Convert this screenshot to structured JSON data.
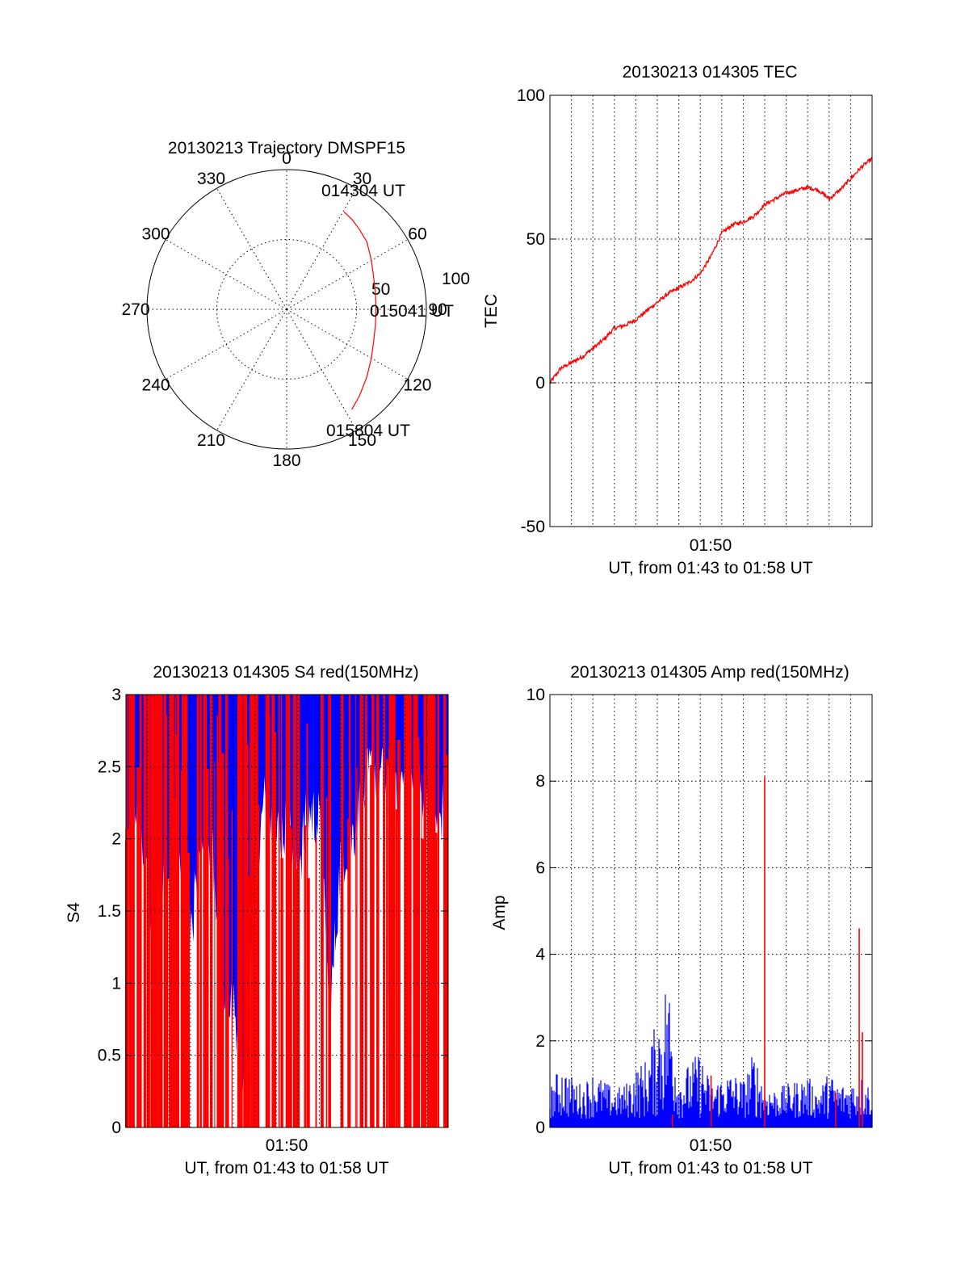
{
  "colors": {
    "red": "#ff0000",
    "blue": "#0000ff",
    "axis": "#000000"
  },
  "chart_data": [
    {
      "id": "trajectory",
      "type": "polar",
      "title": "20130213 Trajectory DMSPF15",
      "angle_labels": [
        "0",
        "30",
        "60",
        "90",
        "120",
        "150",
        "180",
        "210",
        "240",
        "270",
        "300",
        "330"
      ],
      "radial_labels": [
        "50",
        "100"
      ],
      "rlim": [
        0,
        100
      ],
      "grid": true,
      "series": [
        {
          "color": "#ff0000",
          "azimuth_deg": [
            30.5,
            36,
            42,
            50,
            60,
            70,
            80,
            90,
            100,
            110,
            120,
            130,
            140,
            147
          ],
          "radius": [
            81,
            79.5,
            77.5,
            75,
            70,
            66.3,
            64.5,
            64,
            64.5,
            66.3,
            70,
            75,
            81,
            85.5
          ]
        }
      ],
      "annotations": {
        "start": "014304 UT",
        "mid": "015041 UT",
        "end": "015804 UT"
      }
    },
    {
      "id": "tec",
      "type": "line",
      "title": "20130213 014305 TEC",
      "xlabel": "UT, from 01:43 to 01:58 UT",
      "ylabel": "TEC",
      "x_tick_labels": [
        "01:50"
      ],
      "y_tick_labels": [
        "-50",
        "0",
        "50",
        "100"
      ],
      "xlim_min": [
        43,
        58
      ],
      "ylim": [
        -50,
        100
      ],
      "grid": true,
      "series": [
        {
          "color": "#ff0000",
          "x_min": [
            43,
            43.5,
            44,
            44.5,
            45,
            45.5,
            46,
            46.5,
            47,
            47.5,
            48,
            48.5,
            49,
            49.5,
            50,
            50.5,
            51,
            51.5,
            52,
            52.5,
            53,
            53.5,
            54,
            54.5,
            55,
            55.5,
            56,
            56.5,
            57,
            57.5,
            58
          ],
          "values": [
            0,
            5,
            7,
            9,
            12,
            15,
            19,
            20,
            22,
            25,
            28,
            31,
            33,
            35,
            38,
            44,
            52,
            55,
            56,
            58,
            62,
            64,
            66,
            67,
            68,
            67,
            64,
            67,
            71,
            75,
            78
          ]
        }
      ]
    },
    {
      "id": "s4",
      "type": "bar",
      "title": "20130213 014305 S4 red(150MHz)",
      "xlabel": "UT, from 01:43 to 01:58 UT",
      "ylabel": "S4",
      "x_tick_labels": [
        "01:50"
      ],
      "y_tick_labels": [
        "0",
        "0.5",
        "1",
        "1.5",
        "2",
        "2.5",
        "3"
      ],
      "xlim_min": [
        43,
        58
      ],
      "ylim": [
        0,
        3
      ],
      "grid": true,
      "series": [
        {
          "name": "red",
          "color": "#ff0000",
          "description_values_range": [
            0,
            3
          ]
        },
        {
          "name": "blue",
          "color": "#0000ff",
          "x_min": [
            43.0,
            43.5,
            44.0,
            44.5,
            45.0,
            45.5,
            46.0,
            46.5,
            47.0,
            47.5,
            48.0,
            48.5,
            49.0,
            49.5,
            50.0,
            50.5,
            51.0,
            51.5,
            52.0,
            52.5,
            53.0,
            53.5,
            54.0,
            54.5,
            55.0,
            55.5,
            56.0,
            56.5,
            57.0,
            57.5,
            58.0
          ],
          "lower_envelope": [
            1.7,
            2.2,
            1.6,
            1.5,
            1.8,
            2.0,
            1.4,
            1.8,
            2.0,
            1.0,
            0.8,
            0.45,
            1.7,
            2.3,
            2.0,
            2.1,
            1.8,
            2.2,
            2.1,
            0.75,
            1.9,
            2.0,
            2.3,
            2.5,
            2.4,
            2.2,
            2.5,
            2.3,
            2.4,
            2.1,
            2.3
          ]
        }
      ]
    },
    {
      "id": "amp",
      "type": "bar",
      "title": "20130213 014305 Amp red(150MHz)",
      "xlabel": "UT, from 01:43 to 01:58 UT",
      "ylabel": "Amp",
      "x_tick_labels": [
        "01:50"
      ],
      "y_tick_labels": [
        "0",
        "2",
        "4",
        "6",
        "8",
        "10"
      ],
      "xlim_min": [
        43,
        58
      ],
      "ylim": [
        0,
        10
      ],
      "grid": true,
      "series": [
        {
          "name": "blue",
          "color": "#0000ff",
          "x_min": [
            43.0,
            43.5,
            44.0,
            44.5,
            45.0,
            45.5,
            46.0,
            46.5,
            47.0,
            47.5,
            48.0,
            48.5,
            49.0,
            49.5,
            50.0,
            50.5,
            51.0,
            51.5,
            52.0,
            52.5,
            53.0,
            53.5,
            54.0,
            54.5,
            55.0,
            55.5,
            56.0,
            56.5,
            57.0,
            57.5,
            58.0
          ],
          "peaks": [
            0.9,
            1.5,
            1.2,
            1.0,
            1.3,
            1.1,
            0.9,
            1.0,
            1.4,
            1.6,
            2.6,
            3.7,
            1.2,
            1.5,
            1.8,
            1.0,
            1.2,
            1.3,
            1.1,
            1.8,
            1.0,
            0.9,
            1.0,
            1.1,
            1.2,
            0.9,
            1.3,
            1.0,
            1.1,
            1.2,
            1.0
          ]
        },
        {
          "name": "red",
          "color": "#ff0000",
          "spikes_x_min": [
            48.7,
            50.5,
            53.0,
            56.3,
            57.4,
            57.55
          ],
          "spikes_values": [
            0.3,
            1.2,
            8.1,
            0.8,
            4.6,
            2.2
          ]
        }
      ]
    }
  ]
}
